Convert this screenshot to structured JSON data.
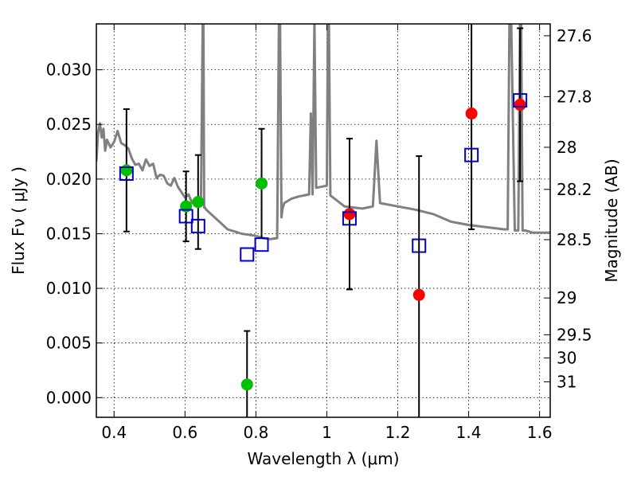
{
  "chart_data": {
    "type": "scatter",
    "xlabel": "Wavelength  λ (μm)",
    "ylabel": "Flux  Fν  ( μJy )",
    "y2label": "Magnitude (AB)",
    "xlim": [
      0.35,
      1.63
    ],
    "ylim": [
      -0.0018,
      0.0342
    ],
    "x_ticks": [
      "0.4",
      "0.6",
      "0.8",
      "1",
      "1.2",
      "1.4",
      "1.6"
    ],
    "y_ticks": [
      "0.000",
      "0.005",
      "0.010",
      "0.015",
      "0.020",
      "0.025",
      "0.030"
    ],
    "mag_ticks": [
      "27.6",
      "27.8",
      "28",
      "28.2",
      "28.5",
      "29",
      "29.5",
      "30",
      "31"
    ],
    "grid": true,
    "colors": {
      "model": "#808080",
      "observed_green": "#00c000",
      "observed_red": "#ff0000",
      "model_flux": "#0000cc",
      "errorbar": "#000000"
    },
    "model_spectrum": {
      "x": [
        0.35,
        0.355,
        0.36,
        0.365,
        0.37,
        0.375,
        0.38,
        0.39,
        0.4,
        0.41,
        0.42,
        0.43,
        0.44,
        0.45,
        0.46,
        0.47,
        0.48,
        0.49,
        0.5,
        0.51,
        0.52,
        0.53,
        0.54,
        0.55,
        0.56,
        0.57,
        0.58,
        0.59,
        0.6,
        0.61,
        0.62,
        0.63,
        0.64,
        0.645,
        0.65,
        0.652,
        0.654,
        0.656,
        0.66,
        0.68,
        0.7,
        0.72,
        0.74,
        0.76,
        0.78,
        0.8,
        0.82,
        0.84,
        0.86,
        0.865,
        0.868,
        0.872,
        0.875,
        0.88,
        0.9,
        0.92,
        0.95,
        0.955,
        0.96,
        0.965,
        0.97,
        1.0,
        1.003,
        1.006,
        1.01,
        1.05,
        1.1,
        1.13,
        1.14,
        1.15,
        1.2,
        1.25,
        1.3,
        1.35,
        1.4,
        1.45,
        1.5,
        1.51,
        1.515,
        1.52,
        1.53,
        1.54,
        1.545,
        1.548,
        1.552,
        1.555,
        1.56,
        1.58,
        1.6,
        1.63
      ],
      "y": [
        0.0216,
        0.0243,
        0.0251,
        0.0238,
        0.0246,
        0.0226,
        0.0236,
        0.0229,
        0.0234,
        0.0244,
        0.0233,
        0.0231,
        0.0228,
        0.0219,
        0.0213,
        0.0214,
        0.0208,
        0.0218,
        0.0212,
        0.0214,
        0.0201,
        0.0204,
        0.0203,
        0.0196,
        0.0194,
        0.0201,
        0.0193,
        0.0188,
        0.0183,
        0.0186,
        0.0178,
        0.0181,
        0.0178,
        0.0181,
        0.0345,
        0.0345,
        0.0174,
        0.0174,
        0.0172,
        0.0166,
        0.016,
        0.0154,
        0.0152,
        0.015,
        0.0149,
        0.0148,
        0.0146,
        0.0145,
        0.0146,
        0.0345,
        0.0345,
        0.0165,
        0.0173,
        0.0178,
        0.0182,
        0.0184,
        0.0186,
        0.026,
        0.0186,
        0.0345,
        0.0192,
        0.0194,
        0.0345,
        0.0345,
        0.0185,
        0.0175,
        0.0173,
        0.0175,
        0.0235,
        0.0178,
        0.0175,
        0.0172,
        0.0168,
        0.0161,
        0.0158,
        0.0156,
        0.0154,
        0.0154,
        0.0345,
        0.0345,
        0.0153,
        0.0153,
        0.0345,
        0.0345,
        0.0153,
        0.0153,
        0.0153,
        0.0151,
        0.0151,
        0.0151
      ]
    },
    "series": [
      {
        "marker": "circle",
        "color": "#00c000",
        "x": [
          0.435,
          0.603,
          0.637,
          0.775,
          0.816
        ],
        "y": [
          0.0208,
          0.0175,
          0.0179,
          0.0012,
          0.0196
        ],
        "yerr": [
          0.0056,
          0.0032,
          0.0043,
          0.0049,
          0.005
        ]
      },
      {
        "marker": "circle",
        "color": "#ff0000",
        "x": [
          1.064,
          1.26,
          1.408,
          1.545
        ],
        "y": [
          0.0168,
          0.0094,
          0.026,
          0.0268
        ],
        "yerr": [
          0.0069,
          0.0127,
          0.0106,
          0.007
        ]
      },
      {
        "marker": "open-square",
        "color": "#0000cc",
        "x": [
          0.435,
          0.603,
          0.637,
          0.775,
          0.816,
          1.064,
          1.26,
          1.408,
          1.545
        ],
        "y": [
          0.0205,
          0.0166,
          0.0157,
          0.0131,
          0.014,
          0.0164,
          0.0139,
          0.0222,
          0.0272
        ]
      }
    ]
  }
}
